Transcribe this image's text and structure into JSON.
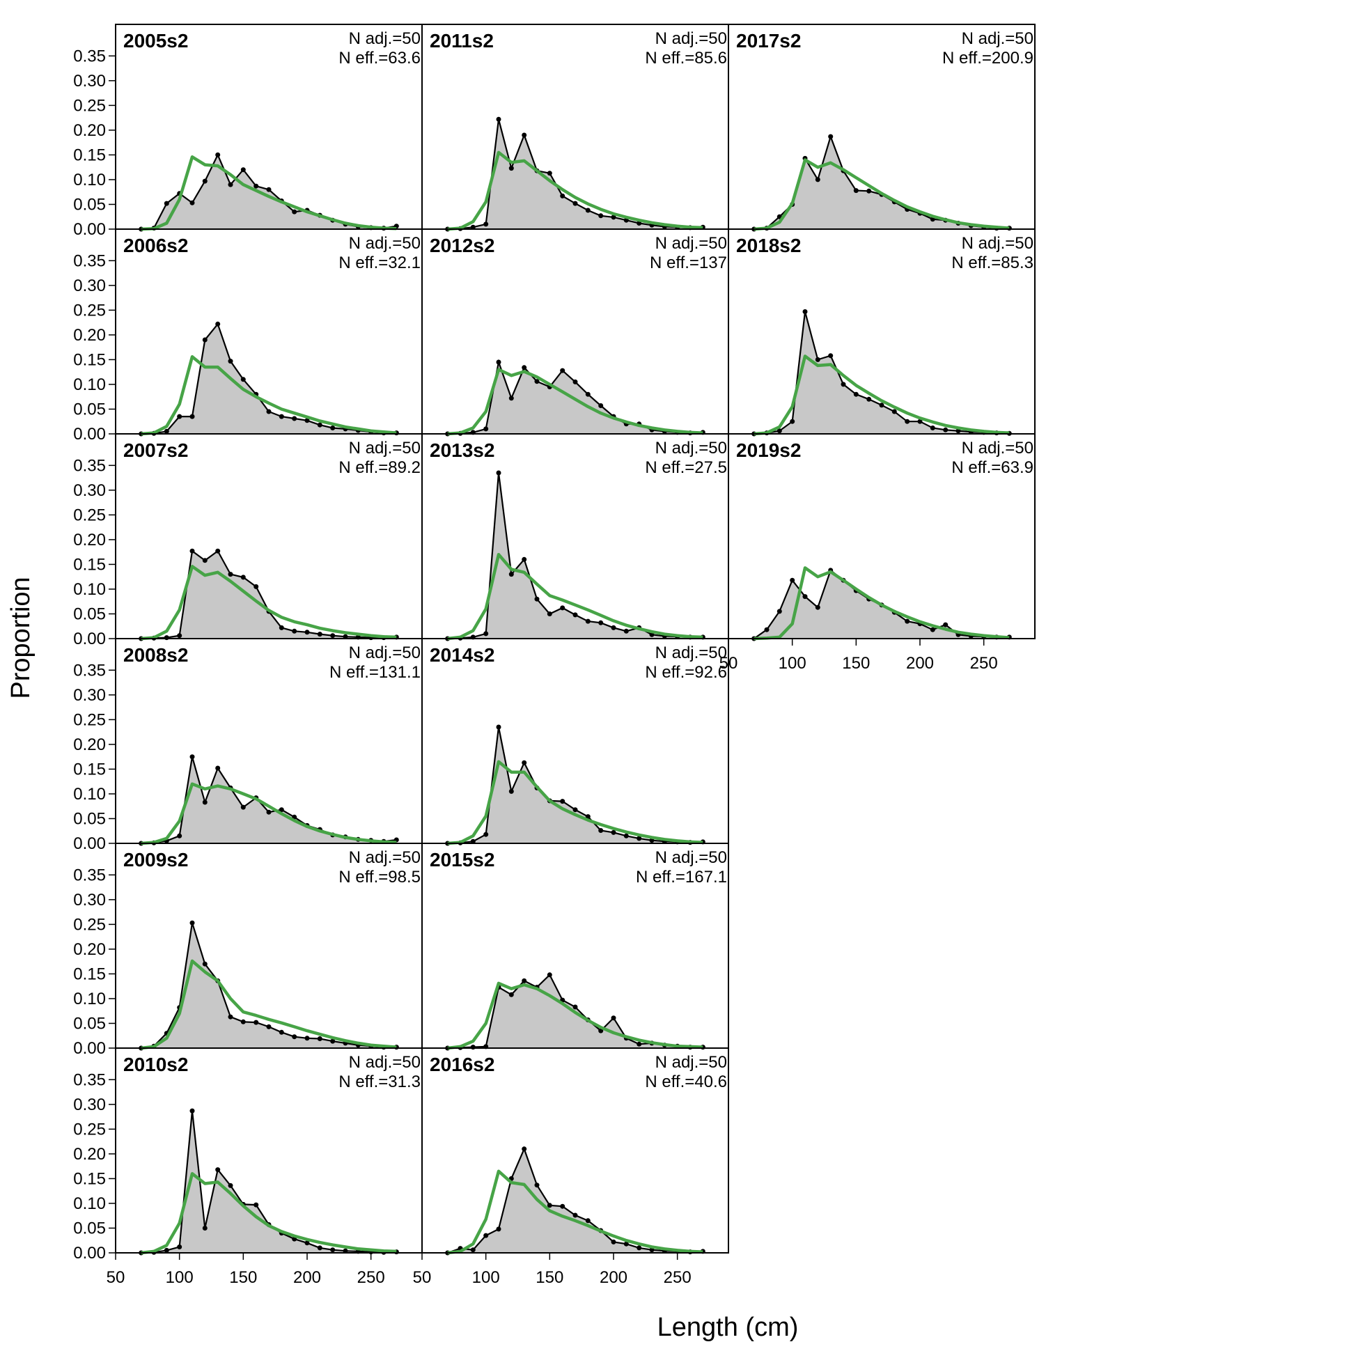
{
  "colors": {
    "observed_fill": "#c8c8c8",
    "observed_line": "#000000",
    "expected_line": "#47a447",
    "zero_line": "#a9a9a9"
  },
  "chart_data": {
    "type": "area",
    "xlabel": "Length (cm)",
    "ylabel": "Proportion",
    "xlim": [
      50,
      290
    ],
    "ylim": [
      0,
      0.38
    ],
    "x_ticks": [
      "50",
      "100",
      "150",
      "200",
      "250"
    ],
    "y_ticks": [
      "0.00",
      "0.05",
      "0.10",
      "0.15",
      "0.20",
      "0.25",
      "0.30",
      "0.35"
    ],
    "x": [
      70,
      80,
      90,
      100,
      110,
      120,
      130,
      140,
      150,
      160,
      170,
      180,
      190,
      200,
      210,
      220,
      230,
      240,
      250,
      260,
      270
    ],
    "legend": "none",
    "grid": false,
    "panels": [
      {
        "title": "2005s2",
        "n_adj": "N adj.=50",
        "n_eff": "N eff.=63.6",
        "observed": [
          0,
          0.002,
          0.052,
          0.072,
          0.053,
          0.097,
          0.15,
          0.09,
          0.12,
          0.087,
          0.08,
          0.057,
          0.035,
          0.038,
          0.028,
          0.018,
          0.01,
          0.005,
          0.003,
          0.002,
          0.006
        ],
        "expected": [
          0,
          0.001,
          0.012,
          0.06,
          0.146,
          0.13,
          0.128,
          0.11,
          0.09,
          0.078,
          0.066,
          0.055,
          0.045,
          0.035,
          0.027,
          0.019,
          0.012,
          0.007,
          0.004,
          0.002,
          0.001
        ]
      },
      {
        "title": "2006s2",
        "n_adj": "N adj.=50",
        "n_eff": "N eff.=32.1",
        "observed": [
          0,
          0.001,
          0.005,
          0.035,
          0.035,
          0.19,
          0.222,
          0.147,
          0.11,
          0.08,
          0.045,
          0.035,
          0.031,
          0.027,
          0.018,
          0.012,
          0.01,
          0.007,
          0.004,
          0.002,
          0.002
        ],
        "expected": [
          0,
          0.002,
          0.015,
          0.06,
          0.156,
          0.135,
          0.135,
          0.112,
          0.09,
          0.075,
          0.062,
          0.05,
          0.042,
          0.034,
          0.026,
          0.02,
          0.014,
          0.01,
          0.006,
          0.004,
          0.002
        ]
      },
      {
        "title": "2007s2",
        "n_adj": "N adj.=50",
        "n_eff": "N eff.=89.2",
        "observed": [
          0,
          0.001,
          0.002,
          0.006,
          0.177,
          0.158,
          0.177,
          0.13,
          0.124,
          0.105,
          0.055,
          0.022,
          0.015,
          0.013,
          0.009,
          0.006,
          0.004,
          0.003,
          0.002,
          0.002,
          0.003
        ],
        "expected": [
          0,
          0.002,
          0.015,
          0.058,
          0.146,
          0.128,
          0.134,
          0.116,
          0.096,
          0.076,
          0.057,
          0.043,
          0.034,
          0.028,
          0.021,
          0.016,
          0.012,
          0.009,
          0.006,
          0.004,
          0.003
        ]
      },
      {
        "title": "2008s2",
        "n_adj": "N adj.=50",
        "n_eff": "N eff.=131.1",
        "observed": [
          0,
          0.001,
          0.005,
          0.015,
          0.175,
          0.083,
          0.152,
          0.112,
          0.073,
          0.092,
          0.063,
          0.068,
          0.053,
          0.036,
          0.028,
          0.017,
          0.013,
          0.008,
          0.006,
          0.004,
          0.007
        ],
        "expected": [
          0,
          0.002,
          0.01,
          0.045,
          0.12,
          0.11,
          0.116,
          0.11,
          0.1,
          0.09,
          0.075,
          0.06,
          0.046,
          0.034,
          0.025,
          0.018,
          0.012,
          0.008,
          0.005,
          0.003,
          0.002
        ]
      },
      {
        "title": "2009s2",
        "n_adj": "N adj.=50",
        "n_eff": "N eff.=98.5",
        "observed": [
          0,
          0.004,
          0.03,
          0.082,
          0.253,
          0.17,
          0.136,
          0.063,
          0.053,
          0.052,
          0.043,
          0.032,
          0.023,
          0.02,
          0.019,
          0.014,
          0.01,
          0.006,
          0.004,
          0.002,
          0.002
        ],
        "expected": [
          0,
          0.003,
          0.02,
          0.07,
          0.176,
          0.154,
          0.136,
          0.1,
          0.073,
          0.066,
          0.058,
          0.051,
          0.043,
          0.035,
          0.028,
          0.021,
          0.015,
          0.01,
          0.006,
          0.004,
          0.002
        ]
      },
      {
        "title": "2010s2",
        "n_adj": "N adj.=50",
        "n_eff": "N eff.=31.3",
        "observed": [
          0,
          0.001,
          0.005,
          0.012,
          0.287,
          0.05,
          0.168,
          0.136,
          0.098,
          0.097,
          0.057,
          0.04,
          0.028,
          0.02,
          0.01,
          0.006,
          0.004,
          0.003,
          0.002,
          0.001,
          0.002
        ],
        "expected": [
          0,
          0.003,
          0.015,
          0.06,
          0.16,
          0.14,
          0.143,
          0.12,
          0.095,
          0.073,
          0.055,
          0.043,
          0.034,
          0.027,
          0.021,
          0.016,
          0.012,
          0.008,
          0.006,
          0.004,
          0.003
        ]
      },
      {
        "title": "2011s2",
        "n_adj": "N adj.=50",
        "n_eff": "N eff.=85.6",
        "observed": [
          0,
          0.001,
          0.004,
          0.01,
          0.222,
          0.123,
          0.19,
          0.118,
          0.113,
          0.067,
          0.052,
          0.038,
          0.027,
          0.024,
          0.018,
          0.012,
          0.008,
          0.005,
          0.004,
          0.003,
          0.004
        ],
        "expected": [
          0,
          0.002,
          0.015,
          0.055,
          0.155,
          0.135,
          0.138,
          0.118,
          0.098,
          0.08,
          0.064,
          0.051,
          0.04,
          0.031,
          0.024,
          0.018,
          0.013,
          0.009,
          0.006,
          0.004,
          0.003
        ]
      },
      {
        "title": "2012s2",
        "n_adj": "N adj.=50",
        "n_eff": "N eff.=137",
        "observed": [
          0,
          0.001,
          0.003,
          0.01,
          0.145,
          0.072,
          0.134,
          0.106,
          0.095,
          0.128,
          0.105,
          0.08,
          0.057,
          0.035,
          0.02,
          0.02,
          0.008,
          0.005,
          0.003,
          0.002,
          0.003
        ],
        "expected": [
          0,
          0.002,
          0.012,
          0.045,
          0.13,
          0.118,
          0.126,
          0.115,
          0.1,
          0.085,
          0.07,
          0.055,
          0.042,
          0.032,
          0.024,
          0.017,
          0.012,
          0.008,
          0.005,
          0.003,
          0.002
        ]
      },
      {
        "title": "2013s2",
        "n_adj": "N adj.=50",
        "n_eff": "N eff.=27.5",
        "observed": [
          0,
          0.001,
          0.003,
          0.01,
          0.335,
          0.13,
          0.16,
          0.08,
          0.05,
          0.062,
          0.048,
          0.035,
          0.032,
          0.022,
          0.015,
          0.022,
          0.008,
          0.005,
          0.004,
          0.003,
          0.003
        ],
        "expected": [
          0,
          0.003,
          0.016,
          0.06,
          0.17,
          0.14,
          0.134,
          0.11,
          0.087,
          0.078,
          0.068,
          0.058,
          0.047,
          0.036,
          0.027,
          0.02,
          0.014,
          0.009,
          0.006,
          0.004,
          0.003
        ]
      },
      {
        "title": "2014s2",
        "n_adj": "N adj.=50",
        "n_eff": "N eff.=92.6",
        "observed": [
          0,
          0.001,
          0.004,
          0.018,
          0.235,
          0.105,
          0.163,
          0.112,
          0.086,
          0.085,
          0.068,
          0.054,
          0.026,
          0.022,
          0.015,
          0.01,
          0.006,
          0.004,
          0.003,
          0.002,
          0.003
        ],
        "expected": [
          0,
          0.002,
          0.015,
          0.055,
          0.165,
          0.144,
          0.144,
          0.114,
          0.086,
          0.07,
          0.058,
          0.047,
          0.038,
          0.03,
          0.023,
          0.017,
          0.012,
          0.008,
          0.005,
          0.003,
          0.002
        ]
      },
      {
        "title": "2015s2",
        "n_adj": "N adj.=50",
        "n_eff": "N eff.=167.1",
        "observed": [
          0,
          0.001,
          0.002,
          0.003,
          0.123,
          0.108,
          0.136,
          0.123,
          0.148,
          0.097,
          0.083,
          0.057,
          0.035,
          0.061,
          0.02,
          0.008,
          0.01,
          0.006,
          0.004,
          0.002,
          0.002
        ],
        "expected": [
          0,
          0.003,
          0.014,
          0.05,
          0.131,
          0.12,
          0.128,
          0.12,
          0.106,
          0.09,
          0.072,
          0.056,
          0.042,
          0.031,
          0.023,
          0.016,
          0.011,
          0.007,
          0.004,
          0.003,
          0.002
        ]
      },
      {
        "title": "2016s2",
        "n_adj": "N adj.=50",
        "n_eff": "N eff.=40.6",
        "observed": [
          0,
          0.009,
          0.006,
          0.035,
          0.048,
          0.15,
          0.21,
          0.137,
          0.096,
          0.094,
          0.076,
          0.065,
          0.045,
          0.022,
          0.018,
          0.01,
          0.006,
          0.004,
          0.003,
          0.002,
          0.003
        ],
        "expected": [
          0,
          0.003,
          0.018,
          0.068,
          0.165,
          0.142,
          0.138,
          0.108,
          0.085,
          0.074,
          0.065,
          0.055,
          0.044,
          0.034,
          0.025,
          0.018,
          0.012,
          0.008,
          0.005,
          0.003,
          0.002
        ]
      },
      {
        "title": "2017s2",
        "n_adj": "N adj.=50",
        "n_eff": "N eff.=200.9",
        "observed": [
          0,
          0.002,
          0.025,
          0.05,
          0.143,
          0.1,
          0.187,
          0.118,
          0.078,
          0.077,
          0.07,
          0.055,
          0.04,
          0.032,
          0.02,
          0.018,
          0.012,
          0.007,
          0.004,
          0.002,
          0.002
        ],
        "expected": [
          0,
          0.002,
          0.014,
          0.052,
          0.14,
          0.125,
          0.134,
          0.12,
          0.104,
          0.088,
          0.072,
          0.058,
          0.045,
          0.035,
          0.026,
          0.019,
          0.013,
          0.009,
          0.006,
          0.004,
          0.002
        ]
      },
      {
        "title": "2018s2",
        "n_adj": "N adj.=50",
        "n_eff": "N eff.=85.3",
        "observed": [
          0,
          0.002,
          0.006,
          0.025,
          0.247,
          0.15,
          0.158,
          0.1,
          0.08,
          0.07,
          0.058,
          0.045,
          0.025,
          0.025,
          0.012,
          0.008,
          0.006,
          0.004,
          0.003,
          0.002,
          0.001
        ],
        "expected": [
          0,
          0.002,
          0.014,
          0.055,
          0.157,
          0.138,
          0.14,
          0.118,
          0.098,
          0.082,
          0.067,
          0.054,
          0.042,
          0.032,
          0.024,
          0.017,
          0.012,
          0.008,
          0.005,
          0.003,
          0.002
        ]
      },
      {
        "title": "2019s2",
        "n_adj": "N adj.=50",
        "n_eff": "N eff.=63.9",
        "observed": [
          0,
          0.018,
          0.055,
          0.118,
          0.085,
          0.063,
          0.138,
          0.118,
          0.097,
          0.08,
          0.068,
          0.053,
          0.035,
          0.03,
          0.018,
          0.028,
          0.008,
          0.005,
          0.004,
          0.003,
          0.003
        ],
        "expected": [
          0,
          0.001,
          0.003,
          0.03,
          0.143,
          0.125,
          0.135,
          0.118,
          0.1,
          0.083,
          0.068,
          0.055,
          0.044,
          0.034,
          0.026,
          0.019,
          0.013,
          0.009,
          0.006,
          0.004,
          0.002
        ]
      }
    ]
  }
}
